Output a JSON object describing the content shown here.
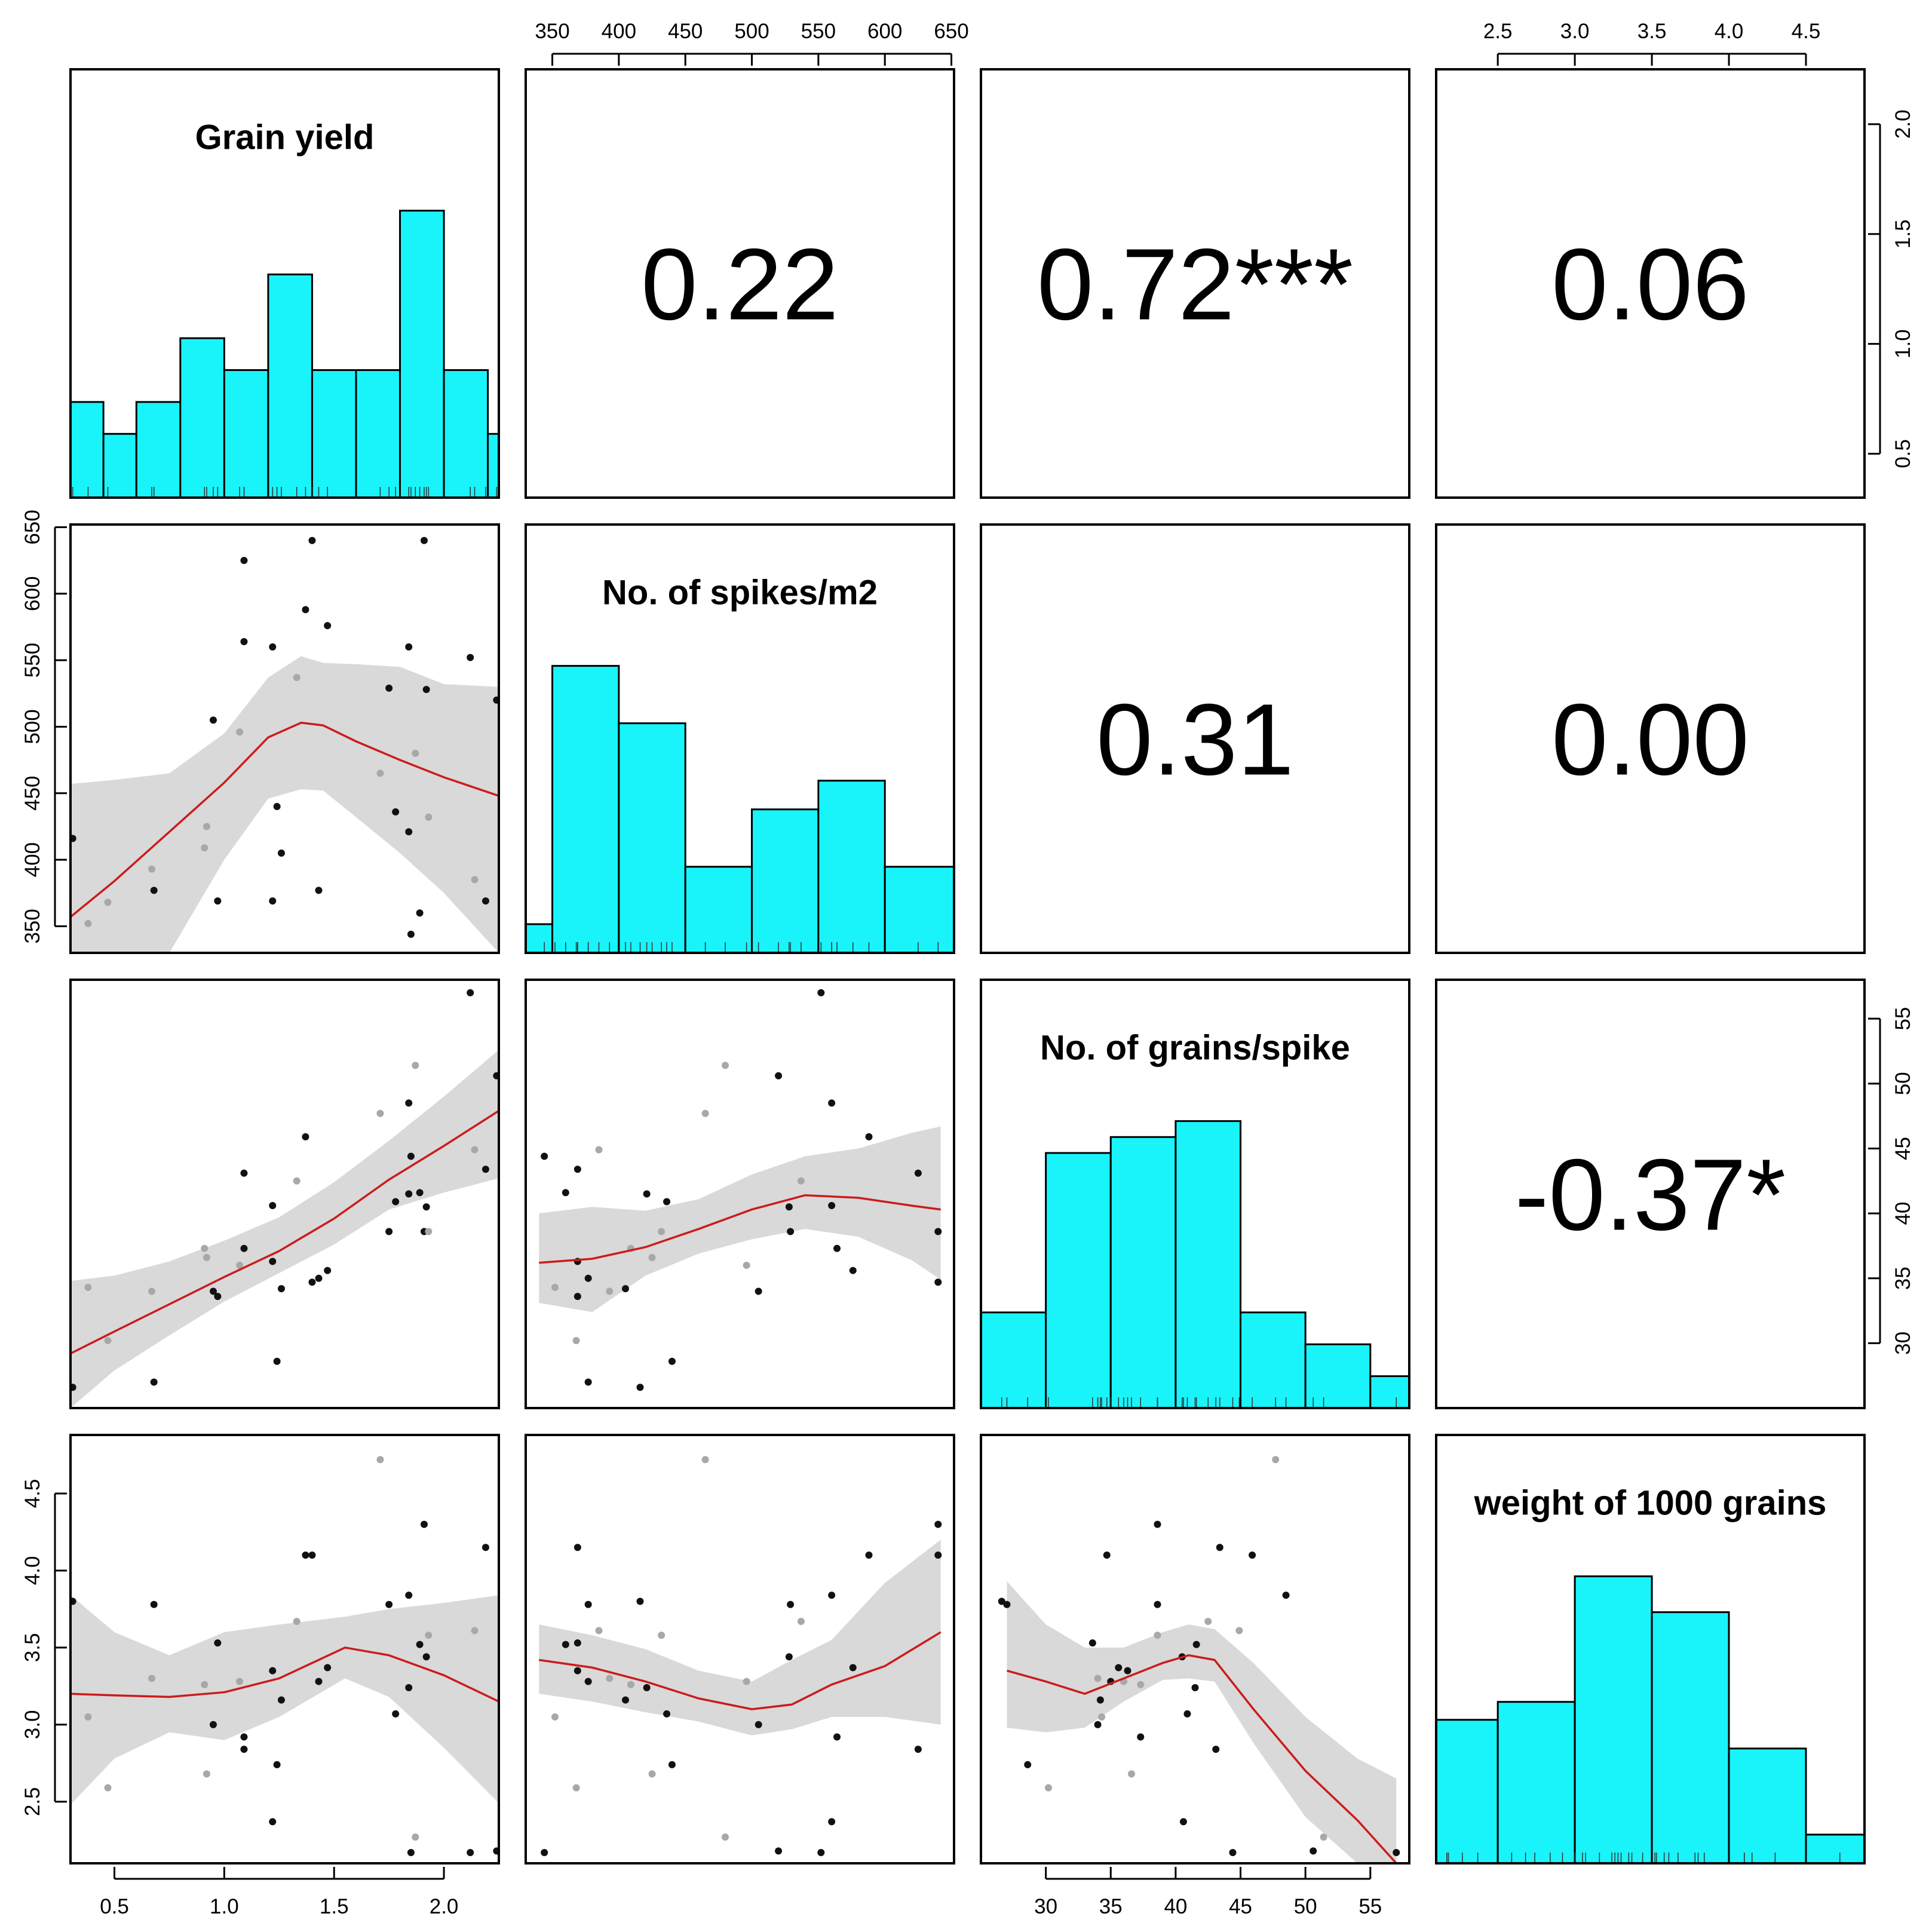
{
  "chart_data": {
    "type": "scatter-matrix",
    "colors": {
      "bar": "#18f4fa",
      "fit": "#cc1b1b",
      "band": "#d9d9d9",
      "point_dark": "#111111",
      "point_light": "#a8a8a8"
    },
    "variables": [
      {
        "name": "Grain yield",
        "range": [
          0.3,
          2.25
        ]
      },
      {
        "name": "No. of spikes/m2",
        "range": [
          330,
          652
        ]
      },
      {
        "name": "No. of grains/spike",
        "range": [
          25,
          58
        ]
      },
      {
        "name": "weight of 1000 grains",
        "range": [
          2.1,
          4.88
        ]
      }
    ],
    "correlations": [
      {
        "row": 0,
        "col": 1,
        "text": "0.22"
      },
      {
        "row": 0,
        "col": 2,
        "text": "0.72***"
      },
      {
        "row": 0,
        "col": 3,
        "text": "0.06"
      },
      {
        "row": 1,
        "col": 2,
        "text": "0.31"
      },
      {
        "row": 1,
        "col": 3,
        "text": "0.00"
      },
      {
        "row": 2,
        "col": 3,
        "text": "-0.37*"
      }
    ],
    "axes": {
      "top": [
        {
          "col": 1,
          "ticks": [
            350,
            400,
            450,
            500,
            550,
            600,
            650
          ],
          "labels": [
            "350",
            "400",
            "450",
            "500",
            "550",
            "600",
            "650"
          ]
        },
        {
          "col": 3,
          "ticks": [
            2.5,
            3.0,
            3.5,
            4.0,
            4.5
          ],
          "labels": [
            "2.5",
            "3.0",
            "3.5",
            "4.0",
            "4.5"
          ]
        }
      ],
      "bottom": [
        {
          "col": 0,
          "ticks": [
            0.5,
            1.0,
            1.5,
            2.0
          ],
          "labels": [
            "0.5",
            "1.0",
            "1.5",
            "2.0"
          ]
        },
        {
          "col": 2,
          "ticks": [
            30,
            35,
            40,
            45,
            50,
            55
          ],
          "labels": [
            "30",
            "35",
            "40",
            "45",
            "50",
            "55"
          ]
        }
      ],
      "left": [
        {
          "row": 1,
          "ticks": [
            350,
            400,
            450,
            500,
            550,
            600,
            650
          ],
          "labels": [
            "350",
            "400",
            "450",
            "500",
            "550",
            "600",
            "650"
          ]
        },
        {
          "row": 3,
          "ticks": [
            2.5,
            3.0,
            3.5,
            4.0,
            4.5
          ],
          "labels": [
            "2.5",
            "3.0",
            "3.5",
            "4.0",
            "4.5"
          ]
        }
      ],
      "right": [
        {
          "row": 0,
          "ticks": [
            0.5,
            1.0,
            1.5,
            2.0
          ],
          "labels": [
            "0.5",
            "1.0",
            "1.5",
            "2.0"
          ]
        },
        {
          "row": 2,
          "ticks": [
            30,
            35,
            40,
            45,
            50,
            55
          ],
          "labels": [
            "30",
            "35",
            "40",
            "45",
            "50",
            "55"
          ]
        }
      ]
    },
    "histograms": [
      {
        "var": 0,
        "edges": [
          0.3,
          0.45,
          0.6,
          0.8,
          1.0,
          1.2,
          1.4,
          1.6,
          1.8,
          2.0,
          2.2,
          2.25
        ],
        "counts": [
          3,
          2,
          3,
          5,
          4,
          7,
          4,
          4,
          9,
          4,
          2
        ]
      },
      {
        "var": 1,
        "edges": [
          330,
          350,
          400,
          450,
          500,
          550,
          600,
          652
        ],
        "counts": [
          1,
          10,
          8,
          3,
          5,
          6,
          3
        ]
      },
      {
        "var": 2,
        "edges": [
          25,
          30,
          35,
          40,
          45,
          50,
          55,
          58
        ],
        "counts": [
          3,
          8,
          8.5,
          9,
          3,
          2,
          1
        ]
      },
      {
        "var": 3,
        "edges": [
          2.1,
          2.5,
          3.0,
          3.5,
          4.0,
          4.5,
          4.88
        ],
        "counts": [
          4,
          4.5,
          8,
          7,
          3.2,
          0.8
        ]
      }
    ],
    "observations": [
      {
        "gy": 0.31,
        "sp": 416,
        "gs": 26.6,
        "tgw": 3.8,
        "c": "d"
      },
      {
        "gy": 0.38,
        "sp": 352,
        "gs": 34.3,
        "tgw": 3.05,
        "c": "l"
      },
      {
        "gy": 0.47,
        "sp": 368,
        "gs": 30.2,
        "tgw": 2.59,
        "c": "l"
      },
      {
        "gy": 0.67,
        "sp": 393,
        "gs": 34.0,
        "tgw": 3.3,
        "c": "l"
      },
      {
        "gy": 0.68,
        "sp": 377,
        "gs": 27.0,
        "tgw": 3.78,
        "c": "d"
      },
      {
        "gy": 0.91,
        "sp": 409,
        "gs": 37.3,
        "tgw": 3.26,
        "c": "l"
      },
      {
        "gy": 0.92,
        "sp": 425,
        "gs": 36.6,
        "tgw": 2.68,
        "c": "l"
      },
      {
        "gy": 0.95,
        "sp": 505,
        "gs": 34.0,
        "tgw": 3.0,
        "c": "d"
      },
      {
        "gy": 0.97,
        "sp": 369,
        "gs": 33.6,
        "tgw": 3.53,
        "c": "d"
      },
      {
        "gy": 1.07,
        "sp": 496,
        "gs": 36.0,
        "tgw": 3.28,
        "c": "l"
      },
      {
        "gy": 1.09,
        "sp": 625,
        "gs": 43.1,
        "tgw": 2.84,
        "c": "d"
      },
      {
        "gy": 1.09,
        "sp": 564,
        "gs": 37.3,
        "tgw": 2.92,
        "c": "d"
      },
      {
        "gy": 1.22,
        "sp": 560,
        "gs": 40.6,
        "tgw": 2.37,
        "c": "d"
      },
      {
        "gy": 1.22,
        "sp": 369,
        "gs": 36.3,
        "tgw": 3.35,
        "c": "d"
      },
      {
        "gy": 1.24,
        "sp": 440,
        "gs": 28.6,
        "tgw": 2.74,
        "c": "d"
      },
      {
        "gy": 1.26,
        "sp": 405,
        "gs": 34.2,
        "tgw": 3.16,
        "c": "d"
      },
      {
        "gy": 1.33,
        "sp": 537,
        "gs": 42.5,
        "tgw": 3.67,
        "c": "l"
      },
      {
        "gy": 1.37,
        "sp": 588,
        "gs": 45.9,
        "tgw": 4.1,
        "c": "d"
      },
      {
        "gy": 1.4,
        "sp": 640,
        "gs": 34.7,
        "tgw": 4.1,
        "c": "d"
      },
      {
        "gy": 1.43,
        "sp": 377,
        "gs": 35.0,
        "tgw": 3.28,
        "c": "d"
      },
      {
        "gy": 1.47,
        "sp": 576,
        "gs": 35.6,
        "tgw": 3.37,
        "c": "d"
      },
      {
        "gy": 1.71,
        "sp": 465,
        "gs": 47.7,
        "tgw": 4.72,
        "c": "l"
      },
      {
        "gy": 1.75,
        "sp": 529,
        "gs": 38.6,
        "tgw": 3.78,
        "c": "d"
      },
      {
        "gy": 1.78,
        "sp": 436,
        "gs": 40.9,
        "tgw": 3.07,
        "c": "d"
      },
      {
        "gy": 1.84,
        "sp": 560,
        "gs": 48.5,
        "tgw": 3.84,
        "c": "d"
      },
      {
        "gy": 1.84,
        "sp": 421,
        "gs": 41.5,
        "tgw": 3.24,
        "c": "d"
      },
      {
        "gy": 1.85,
        "sp": 344,
        "gs": 44.4,
        "tgw": 2.17,
        "c": "d"
      },
      {
        "gy": 1.87,
        "sp": 480,
        "gs": 51.4,
        "tgw": 2.27,
        "c": "l"
      },
      {
        "gy": 1.89,
        "sp": 360,
        "gs": 41.6,
        "tgw": 3.52,
        "c": "d"
      },
      {
        "gy": 1.91,
        "sp": 640,
        "gs": 38.6,
        "tgw": 4.3,
        "c": "d"
      },
      {
        "gy": 1.92,
        "sp": 528,
        "gs": 40.5,
        "tgw": 3.44,
        "c": "d"
      },
      {
        "gy": 1.93,
        "sp": 432,
        "gs": 38.6,
        "tgw": 3.58,
        "c": "l"
      },
      {
        "gy": 2.12,
        "sp": 552,
        "gs": 57.0,
        "tgw": 2.17,
        "c": "d"
      },
      {
        "gy": 2.14,
        "sp": 385,
        "gs": 44.9,
        "tgw": 3.61,
        "c": "l"
      },
      {
        "gy": 2.19,
        "sp": 369,
        "gs": 43.4,
        "tgw": 4.15,
        "c": "d"
      },
      {
        "gy": 2.24,
        "sp": 520,
        "gs": 50.6,
        "tgw": 2.18,
        "c": "d"
      }
    ],
    "fits": [
      {
        "row": 1,
        "col": 0,
        "x": [
          0.3,
          0.5,
          0.75,
          1.0,
          1.2,
          1.35,
          1.45,
          1.6,
          1.8,
          2.0,
          2.25
        ],
        "y": [
          357,
          384,
          421,
          458,
          492,
          503,
          501,
          489,
          475,
          462,
          448
        ],
        "lower": [
          330,
          330,
          330,
          400,
          446,
          453,
          452,
          432,
          405,
          375,
          330
        ],
        "upper": [
          457,
          460,
          465,
          495,
          537,
          553,
          548,
          547,
          545,
          532,
          530
        ]
      },
      {
        "row": 2,
        "col": 0,
        "x": [
          0.3,
          0.5,
          0.75,
          1.0,
          1.25,
          1.5,
          1.75,
          2.0,
          2.25
        ],
        "y": [
          29.2,
          30.9,
          33.0,
          35.1,
          37.1,
          39.6,
          42.6,
          45.2,
          47.9
        ],
        "lower": [
          25.0,
          27.9,
          30.6,
          33.2,
          35.4,
          37.6,
          40.3,
          41.6,
          42.7
        ],
        "upper": [
          34.8,
          35.2,
          36.3,
          37.9,
          39.7,
          42.4,
          45.6,
          49.0,
          52.6
        ]
      },
      {
        "row": 3,
        "col": 0,
        "x": [
          0.3,
          0.5,
          0.75,
          1.0,
          1.25,
          1.55,
          1.75,
          2.0,
          2.25
        ],
        "y": [
          3.2,
          3.19,
          3.18,
          3.21,
          3.3,
          3.5,
          3.45,
          3.32,
          3.15
        ],
        "lower": [
          2.48,
          2.78,
          2.95,
          2.9,
          3.05,
          3.3,
          3.18,
          2.85,
          2.49
        ],
        "upper": [
          3.84,
          3.6,
          3.45,
          3.6,
          3.65,
          3.7,
          3.75,
          3.79,
          3.84
        ]
      },
      {
        "row": 2,
        "col": 1,
        "x": [
          340,
          380,
          420,
          460,
          500,
          540,
          580,
          620,
          642
        ],
        "y": [
          36.2,
          36.5,
          37.4,
          38.8,
          40.3,
          41.4,
          41.2,
          40.6,
          40.3
        ],
        "lower": [
          33.1,
          32.4,
          35.2,
          36.9,
          38.0,
          38.8,
          38.2,
          36.4,
          34.9
        ],
        "upper": [
          40.0,
          40.5,
          40.2,
          41.1,
          43.0,
          44.4,
          45.0,
          46.2,
          46.7
        ]
      },
      {
        "row": 3,
        "col": 1,
        "x": [
          340,
          380,
          420,
          460,
          500,
          530,
          560,
          600,
          642
        ],
        "y": [
          3.42,
          3.37,
          3.28,
          3.17,
          3.1,
          3.13,
          3.26,
          3.38,
          3.6
        ],
        "lower": [
          3.2,
          3.15,
          3.08,
          3.02,
          2.93,
          2.97,
          3.05,
          3.05,
          3.0
        ],
        "upper": [
          3.65,
          3.58,
          3.49,
          3.35,
          3.28,
          3.42,
          3.55,
          3.92,
          4.2
        ]
      },
      {
        "row": 3,
        "col": 2,
        "x": [
          27.0,
          30.0,
          33.0,
          36.0,
          39.0,
          41.0,
          43.0,
          46.0,
          50.0,
          54.0,
          57.0
        ],
        "y": [
          3.35,
          3.28,
          3.2,
          3.3,
          3.4,
          3.45,
          3.42,
          3.1,
          2.7,
          2.38,
          2.1
        ],
        "lower": [
          2.98,
          2.95,
          2.98,
          3.15,
          3.29,
          3.3,
          3.28,
          2.88,
          2.4,
          2.1,
          2.1
        ],
        "upper": [
          3.93,
          3.65,
          3.5,
          3.5,
          3.6,
          3.65,
          3.62,
          3.4,
          3.05,
          2.78,
          2.65
        ]
      }
    ]
  }
}
